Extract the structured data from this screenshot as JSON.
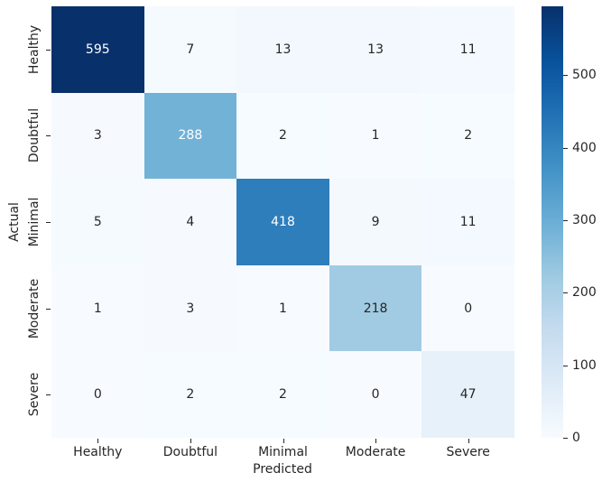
{
  "chart_data": {
    "type": "heatmap",
    "title": "",
    "xlabel": "Predicted",
    "ylabel": "Actual",
    "x_categories": [
      "Healthy",
      "Doubtful",
      "Minimal",
      "Moderate",
      "Severe"
    ],
    "y_categories": [
      "Healthy",
      "Doubtful",
      "Minimal",
      "Moderate",
      "Severe"
    ],
    "values": [
      [
        595,
        7,
        13,
        13,
        11
      ],
      [
        3,
        288,
        2,
        1,
        2
      ],
      [
        5,
        4,
        418,
        9,
        11
      ],
      [
        1,
        3,
        1,
        218,
        0
      ],
      [
        0,
        2,
        2,
        0,
        47
      ]
    ],
    "vmin": 0,
    "vmax": 595,
    "colormap": "Blues",
    "colorbar_ticks": [
      0,
      100,
      200,
      300,
      400,
      500
    ],
    "colormap_stops": [
      "#f7fbff",
      "#deebf7",
      "#c6dbef",
      "#9ecae1",
      "#6baed6",
      "#4292c6",
      "#2171b5",
      "#08519c",
      "#08306b"
    ],
    "cell_colors": [
      [
        "#08306b",
        "#f5fafe",
        "#f3f8fe",
        "#f3f8fe",
        "#f3f9fe"
      ],
      [
        "#f6faff",
        "#72b2d7",
        "#f6fbff",
        "#f7fbff",
        "#f6fbff"
      ],
      [
        "#f5faff",
        "#f6fafe",
        "#2e7ebc",
        "#f4f9fe",
        "#f3f9fe"
      ],
      [
        "#f7fbff",
        "#f6faff",
        "#f7fbff",
        "#a1cbe2",
        "#f7fbff"
      ],
      [
        "#f7fbff",
        "#f6fbff",
        "#f6fbff",
        "#f7fbff",
        "#e7f1fa"
      ]
    ],
    "cell_text_colors": [
      [
        "#ffffff",
        "#262626",
        "#262626",
        "#262626",
        "#262626"
      ],
      [
        "#262626",
        "#ffffff",
        "#262626",
        "#262626",
        "#262626"
      ],
      [
        "#262626",
        "#262626",
        "#ffffff",
        "#262626",
        "#262626"
      ],
      [
        "#262626",
        "#262626",
        "#262626",
        "#262626",
        "#262626"
      ],
      [
        "#262626",
        "#262626",
        "#262626",
        "#262626",
        "#262626"
      ]
    ],
    "text_color": "#262626",
    "background_color": "#ffffff"
  }
}
